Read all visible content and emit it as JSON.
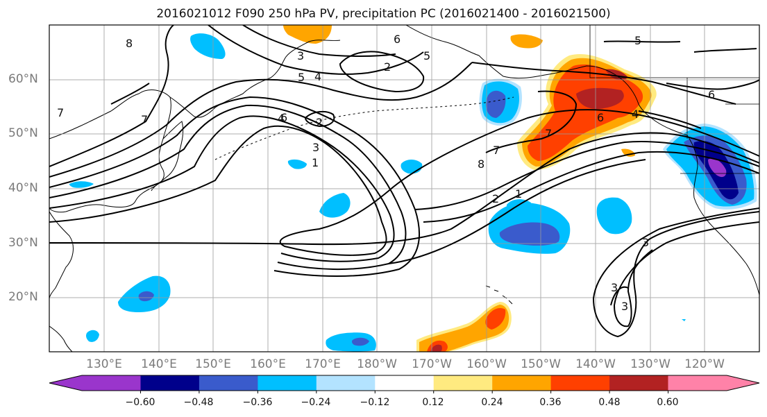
{
  "title": "2016021012 F090 250 hPa PV, precipitation PC (2016021400 - 2016021500)",
  "map": {
    "lat_labels": [
      "60°N",
      "50°N",
      "40°N",
      "30°N",
      "20°N"
    ],
    "lon_labels": [
      "130°E",
      "140°E",
      "150°E",
      "160°E",
      "170°E",
      "180°W",
      "170°W",
      "160°W",
      "150°W",
      "140°W",
      "130°W",
      "120°W"
    ],
    "contour_labels": [
      "8",
      "7",
      "3",
      "5",
      "4",
      "2",
      "6",
      "5",
      "5",
      "6",
      "7",
      "3",
      "4",
      "2",
      "1",
      "6",
      "7",
      "8",
      "2",
      "1",
      "6",
      "4",
      "3",
      "3",
      "3",
      "7"
    ]
  },
  "colorbar": {
    "colors": [
      "#9a35cc",
      "#00008b",
      "#3a5bcc",
      "#00bfff",
      "#b3e3ff",
      "#ffffff",
      "#ffea80",
      "#ffa500",
      "#ff4000",
      "#b22222",
      "#ff82a8"
    ],
    "under_color": "#9a35cc",
    "over_color": "#ff82a8",
    "ticks": [
      "−0.60",
      "−0.48",
      "−0.36",
      "−0.24",
      "−0.12",
      "0.12",
      "0.24",
      "0.36",
      "0.48",
      "0.60"
    ]
  }
}
